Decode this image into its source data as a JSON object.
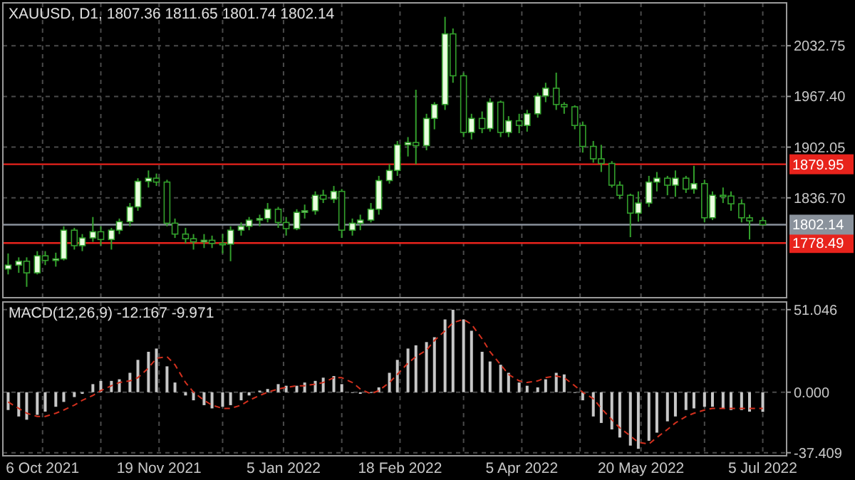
{
  "chart_data": [
    {
      "type": "candlestick",
      "title": "XAUUSD, D1, 1807.36 1811.65 1801.74 1802.14",
      "color": "#33a02c",
      "grid": true,
      "tick_labels": "y",
      "x": [
        "2021-09-23",
        "2021-09-27",
        "2021-09-30",
        "2021-10-04",
        "2021-10-07",
        "2021-10-11",
        "2021-10-14",
        "2021-10-18",
        "2021-10-21",
        "2021-10-25",
        "2021-10-28",
        "2021-11-01",
        "2021-11-04",
        "2021-11-08",
        "2021-11-11",
        "2021-11-15",
        "2021-11-18",
        "2021-11-22",
        "2021-11-25",
        "2021-11-29",
        "2021-12-02",
        "2021-12-06",
        "2021-12-09",
        "2021-12-13",
        "2021-12-16",
        "2021-12-20",
        "2021-12-23",
        "2021-12-27",
        "2021-12-30",
        "2022-01-03",
        "2022-01-06",
        "2022-01-10",
        "2022-01-13",
        "2022-01-17",
        "2022-01-20",
        "2022-01-24",
        "2022-01-27",
        "2022-01-31",
        "2022-02-03",
        "2022-02-07",
        "2022-02-10",
        "2022-02-14",
        "2022-02-17",
        "2022-02-21",
        "2022-02-24",
        "2022-02-28",
        "2022-03-03",
        "2022-03-07",
        "2022-03-10",
        "2022-03-14",
        "2022-03-17",
        "2022-03-21",
        "2022-03-24",
        "2022-03-28",
        "2022-03-31",
        "2022-04-04",
        "2022-04-07",
        "2022-04-11",
        "2022-04-14",
        "2022-04-18",
        "2022-04-21",
        "2022-04-25",
        "2022-04-28",
        "2022-05-02",
        "2022-05-05",
        "2022-05-09",
        "2022-05-12",
        "2022-05-16",
        "2022-05-19",
        "2022-05-23",
        "2022-05-26",
        "2022-05-30",
        "2022-06-02",
        "2022-06-06",
        "2022-06-09",
        "2022-06-13",
        "2022-06-16",
        "2022-06-20",
        "2022-06-23",
        "2022-06-27",
        "2022-06-30",
        "2022-07-05"
      ],
      "ohlc": [
        [
          1745,
          1765,
          1738,
          1750
        ],
        [
          1750,
          1760,
          1740,
          1755
        ],
        [
          1755,
          1760,
          1722,
          1740
        ],
        [
          1740,
          1768,
          1738,
          1762
        ],
        [
          1762,
          1768,
          1750,
          1756
        ],
        [
          1756,
          1766,
          1748,
          1758
        ],
        [
          1758,
          1800,
          1756,
          1795
        ],
        [
          1795,
          1798,
          1770,
          1775
        ],
        [
          1775,
          1790,
          1768,
          1785
        ],
        [
          1785,
          1812,
          1780,
          1793
        ],
        [
          1793,
          1800,
          1775,
          1783
        ],
        [
          1783,
          1798,
          1770,
          1795
        ],
        [
          1795,
          1810,
          1790,
          1806
        ],
        [
          1806,
          1830,
          1800,
          1825
        ],
        [
          1825,
          1862,
          1820,
          1858
        ],
        [
          1858,
          1872,
          1850,
          1862
        ],
        [
          1862,
          1868,
          1852,
          1857
        ],
        [
          1857,
          1860,
          1800,
          1804
        ],
        [
          1804,
          1810,
          1785,
          1790
        ],
        [
          1790,
          1798,
          1778,
          1784
        ],
        [
          1784,
          1790,
          1770,
          1780
        ],
        [
          1780,
          1790,
          1772,
          1782
        ],
        [
          1782,
          1788,
          1772,
          1778
        ],
        [
          1778,
          1790,
          1765,
          1777
        ],
        [
          1777,
          1800,
          1755,
          1795
        ],
        [
          1795,
          1805,
          1788,
          1800
        ],
        [
          1800,
          1812,
          1795,
          1808
        ],
        [
          1808,
          1815,
          1800,
          1810
        ],
        [
          1810,
          1830,
          1805,
          1822
        ],
        [
          1822,
          1825,
          1798,
          1805
        ],
        [
          1805,
          1812,
          1788,
          1797
        ],
        [
          1797,
          1822,
          1795,
          1818
        ],
        [
          1818,
          1828,
          1810,
          1820
        ],
        [
          1820,
          1845,
          1815,
          1840
        ],
        [
          1840,
          1847,
          1830,
          1835
        ],
        [
          1835,
          1852,
          1830,
          1845
        ],
        [
          1845,
          1848,
          1785,
          1795
        ],
        [
          1795,
          1810,
          1788,
          1804
        ],
        [
          1804,
          1815,
          1795,
          1808
        ],
        [
          1808,
          1830,
          1805,
          1822
        ],
        [
          1822,
          1865,
          1815,
          1859
        ],
        [
          1859,
          1880,
          1855,
          1872
        ],
        [
          1872,
          1910,
          1865,
          1905
        ],
        [
          1905,
          1915,
          1890,
          1908
        ],
        [
          1908,
          1976,
          1880,
          1904
        ],
        [
          1904,
          1945,
          1898,
          1939
        ],
        [
          1939,
          1960,
          1925,
          1957
        ],
        [
          1957,
          2070,
          1950,
          2048
        ],
        [
          2048,
          2055,
          1985,
          1994
        ],
        [
          1994,
          1998,
          1915,
          1921
        ],
        [
          1921,
          1945,
          1912,
          1939
        ],
        [
          1939,
          1948,
          1920,
          1926
        ],
        [
          1926,
          1965,
          1922,
          1960
        ],
        [
          1960,
          1962,
          1915,
          1921
        ],
        [
          1921,
          1942,
          1915,
          1936
        ],
        [
          1936,
          1945,
          1920,
          1930
        ],
        [
          1930,
          1950,
          1922,
          1945
        ],
        [
          1945,
          1972,
          1940,
          1968
        ],
        [
          1968,
          1985,
          1960,
          1978
        ],
        [
          1978,
          1998,
          1950,
          1957
        ],
        [
          1957,
          1960,
          1945,
          1954
        ],
        [
          1954,
          1956,
          1925,
          1930
        ],
        [
          1930,
          1935,
          1895,
          1903
        ],
        [
          1903,
          1910,
          1882,
          1887
        ],
        [
          1887,
          1905,
          1870,
          1881
        ],
        [
          1881,
          1884,
          1850,
          1853
        ],
        [
          1853,
          1858,
          1835,
          1840
        ],
        [
          1840,
          1842,
          1786,
          1817
        ],
        [
          1817,
          1845,
          1806,
          1830
        ],
        [
          1830,
          1865,
          1825,
          1857
        ],
        [
          1857,
          1870,
          1845,
          1862
        ],
        [
          1862,
          1865,
          1840,
          1853
        ],
        [
          1853,
          1872,
          1838,
          1862
        ],
        [
          1862,
          1865,
          1843,
          1848
        ],
        [
          1848,
          1878,
          1842,
          1855
        ],
        [
          1855,
          1860,
          1805,
          1811
        ],
        [
          1811,
          1845,
          1808,
          1840
        ],
        [
          1840,
          1850,
          1830,
          1839
        ],
        [
          1839,
          1845,
          1820,
          1829
        ],
        [
          1829,
          1835,
          1805,
          1811
        ],
        [
          1811,
          1815,
          1783,
          1807
        ],
        [
          1807.36,
          1811.65,
          1801.74,
          1802.14
        ]
      ],
      "xlim": [
        "2021-09-21",
        "2022-07-14"
      ],
      "xticks": [
        {
          "value": "2021-10-06",
          "label": null
        },
        {
          "value": "2021-10-28",
          "label": null
        },
        {
          "value": "2021-11-19",
          "label": null
        },
        {
          "value": "2021-12-13",
          "label": null
        },
        {
          "value": "2022-01-05",
          "label": null
        },
        {
          "value": "2022-01-27",
          "label": null
        },
        {
          "value": "2022-02-18",
          "label": null
        },
        {
          "value": "2022-03-14",
          "label": null
        },
        {
          "value": "2022-04-05",
          "label": null
        },
        {
          "value": "2022-04-27",
          "label": null
        },
        {
          "value": "2022-05-20",
          "label": null
        },
        {
          "value": "2022-06-13",
          "label": null
        },
        {
          "value": "2022-07-05",
          "label": null
        }
      ],
      "ylim": [
        1708,
        2088
      ],
      "yticks": [
        {
          "value": 2032.75,
          "label": "2032.75"
        },
        {
          "value": 1967.4,
          "label": "1967.40"
        },
        {
          "value": 1902.05,
          "label": "1902.05"
        },
        {
          "value": 1836.7,
          "label": "1836.70"
        }
      ],
      "ref_lines": [
        {
          "axis": "y",
          "value": 1879.95,
          "label": "1879.95",
          "color": "#e8231c"
        },
        {
          "axis": "y",
          "value": 1778.49,
          "label": "1778.49",
          "color": "#e8231c"
        },
        {
          "axis": "y",
          "value": 1802.14,
          "label": "1802.14",
          "color": "#8a929c"
        }
      ]
    },
    {
      "type": "bar",
      "title": "MACD(12,26,9) -12.167 -9.971",
      "grid": true,
      "x": [
        "2021-09-23",
        "2021-09-27",
        "2021-09-30",
        "2021-10-04",
        "2021-10-07",
        "2021-10-11",
        "2021-10-14",
        "2021-10-18",
        "2021-10-21",
        "2021-10-25",
        "2021-10-28",
        "2021-11-01",
        "2021-11-04",
        "2021-11-08",
        "2021-11-11",
        "2021-11-15",
        "2021-11-18",
        "2021-11-22",
        "2021-11-25",
        "2021-11-29",
        "2021-12-02",
        "2021-12-06",
        "2021-12-09",
        "2021-12-13",
        "2021-12-16",
        "2021-12-20",
        "2021-12-23",
        "2021-12-27",
        "2021-12-30",
        "2022-01-03",
        "2022-01-06",
        "2022-01-10",
        "2022-01-13",
        "2022-01-17",
        "2022-01-20",
        "2022-01-24",
        "2022-01-27",
        "2022-01-31",
        "2022-02-03",
        "2022-02-07",
        "2022-02-10",
        "2022-02-14",
        "2022-02-17",
        "2022-02-21",
        "2022-02-24",
        "2022-02-28",
        "2022-03-03",
        "2022-03-07",
        "2022-03-10",
        "2022-03-14",
        "2022-03-17",
        "2022-03-21",
        "2022-03-24",
        "2022-03-28",
        "2022-03-31",
        "2022-04-04",
        "2022-04-07",
        "2022-04-11",
        "2022-04-14",
        "2022-04-18",
        "2022-04-21",
        "2022-04-25",
        "2022-04-28",
        "2022-05-02",
        "2022-05-05",
        "2022-05-09",
        "2022-05-12",
        "2022-05-16",
        "2022-05-19",
        "2022-05-23",
        "2022-05-26",
        "2022-05-30",
        "2022-06-02",
        "2022-06-06",
        "2022-06-09",
        "2022-06-13",
        "2022-06-16",
        "2022-06-20",
        "2022-06-23",
        "2022-06-27",
        "2022-06-30",
        "2022-07-05"
      ],
      "series": [
        {
          "type": "bar",
          "color": "#c8c8c8",
          "values": [
            -11,
            -15,
            -17,
            -14,
            -12,
            -9,
            -6,
            -3,
            -1,
            5,
            7,
            7,
            8,
            12,
            20,
            25,
            27,
            16,
            6,
            -2,
            -5,
            -8,
            -10,
            -9,
            -8,
            -5,
            -2,
            1,
            2,
            5,
            4,
            4,
            6,
            7,
            9,
            10,
            5,
            0,
            -1,
            0,
            3,
            12,
            20,
            27,
            29,
            31,
            34,
            45,
            51,
            45,
            38,
            25,
            19,
            17,
            12,
            6,
            4,
            3,
            8,
            12,
            11,
            0,
            -5,
            -15,
            -19,
            -23,
            -28,
            -33,
            -35,
            -30,
            -25,
            -18,
            -15,
            -11,
            -10,
            -9,
            -9,
            -10,
            -11,
            -11,
            -12,
            -12.167
          ]
        },
        {
          "type": "line",
          "color": "#d2301e",
          "line_style": "dashed",
          "values": [
            -6,
            -10,
            -13,
            -15,
            -15,
            -13,
            -11,
            -8,
            -5,
            -2,
            1,
            4,
            6,
            7,
            9,
            15,
            21,
            22,
            17,
            6,
            0,
            -5,
            -8,
            -10,
            -10,
            -8,
            -5,
            -2,
            0,
            2,
            3,
            4,
            4,
            5,
            6,
            9,
            9,
            6,
            2,
            -1,
            1,
            6,
            11,
            18,
            22,
            26,
            32,
            38,
            43,
            45,
            42,
            33,
            25,
            17,
            11,
            7,
            6,
            7,
            9,
            10,
            9,
            4,
            0,
            -4,
            -10,
            -17,
            -22,
            -27,
            -31,
            -32,
            -28,
            -23,
            -19,
            -15,
            -13,
            -11,
            -10,
            -10,
            -10,
            -10,
            -10,
            -9.971
          ]
        }
      ],
      "xlim": [
        "2021-09-21",
        "2022-07-14"
      ],
      "xticks": [
        {
          "value": "2021-10-06",
          "label": "6 Oct 2021"
        },
        {
          "value": "2021-10-28",
          "label": null
        },
        {
          "value": "2021-11-19",
          "label": "19 Nov 2021"
        },
        {
          "value": "2021-12-13",
          "label": null
        },
        {
          "value": "2022-01-05",
          "label": "5 Jan 2022"
        },
        {
          "value": "2022-01-27",
          "label": null
        },
        {
          "value": "2022-02-18",
          "label": "18 Feb 2022"
        },
        {
          "value": "2022-03-14",
          "label": null
        },
        {
          "value": "2022-04-05",
          "label": "5 Apr 2022"
        },
        {
          "value": "2022-04-27",
          "label": null
        },
        {
          "value": "2022-05-20",
          "label": "20 May 2022"
        },
        {
          "value": "2022-06-13",
          "label": null
        },
        {
          "value": "2022-07-05",
          "label": "5 Jul 2022"
        }
      ],
      "ylim": [
        -39.3,
        55.8
      ],
      "yticks": [
        {
          "value": 51.046,
          "label": "51.046"
        },
        {
          "value": 0,
          "label": "0.000"
        },
        {
          "value": -37.409,
          "label": "-37.409"
        }
      ]
    }
  ]
}
